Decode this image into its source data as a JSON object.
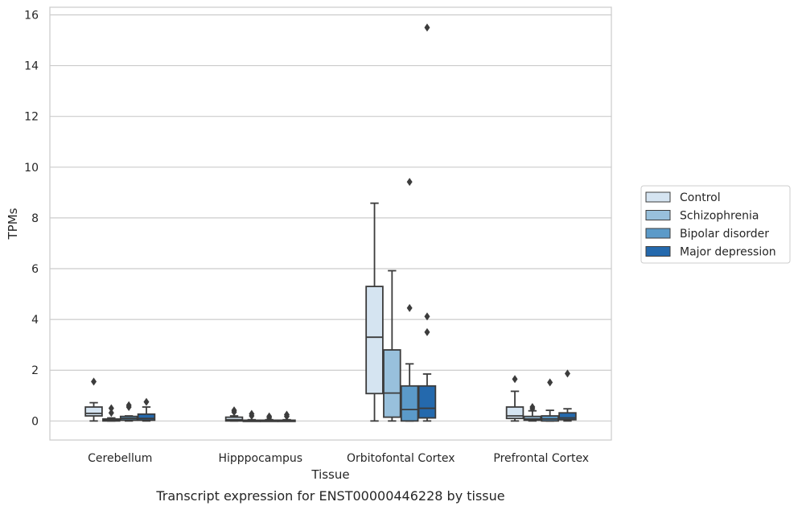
{
  "chart_data": {
    "type": "box",
    "title": "Transcript expression for ENST00000446228 by tissue",
    "xlabel": "Tissue",
    "ylabel": "TPMs",
    "ylim": [
      -0.75,
      16.3
    ],
    "yticks": [
      0,
      2,
      4,
      6,
      8,
      10,
      12,
      14,
      16
    ],
    "grid": true,
    "legend_position": "right",
    "categories": [
      "Cerebellum",
      "Hipppocampus",
      "Orbitofontal Cortex",
      "Prefrontal Cortex"
    ],
    "series": [
      {
        "name": "Control",
        "color": "#d5e4f1",
        "boxes": [
          {
            "whislo": 0.0,
            "q1": 0.2,
            "med": 0.3,
            "q3": 0.55,
            "whishi": 0.72,
            "fliers": [
              1.55
            ]
          },
          {
            "whislo": 0.0,
            "q1": 0.0,
            "med": 0.05,
            "q3": 0.15,
            "whishi": 0.2,
            "fliers": [
              0.35,
              0.42
            ]
          },
          {
            "whislo": 0.0,
            "q1": 1.08,
            "med": 3.3,
            "q3": 5.3,
            "whishi": 8.58,
            "fliers": []
          },
          {
            "whislo": 0.0,
            "q1": 0.1,
            "med": 0.2,
            "q3": 0.55,
            "whishi": 1.17,
            "fliers": [
              1.65
            ]
          }
        ]
      },
      {
        "name": "Schizophrenia",
        "color": "#98c0dc",
        "boxes": [
          {
            "whislo": 0.0,
            "q1": 0.0,
            "med": 0.03,
            "q3": 0.08,
            "whishi": 0.12,
            "fliers": [
              0.32,
              0.5
            ]
          },
          {
            "whislo": 0.0,
            "q1": 0.0,
            "med": 0.01,
            "q3": 0.03,
            "whishi": 0.05,
            "fliers": [
              0.2,
              0.28
            ]
          },
          {
            "whislo": 0.0,
            "q1": 0.15,
            "med": 1.1,
            "q3": 2.8,
            "whishi": 5.92,
            "fliers": []
          },
          {
            "whislo": 0.0,
            "q1": 0.03,
            "med": 0.08,
            "q3": 0.18,
            "whishi": 0.4,
            "fliers": [
              0.48,
              0.55
            ]
          }
        ]
      },
      {
        "name": "Bipolar disorder",
        "color": "#5b9ac9",
        "boxes": [
          {
            "whislo": 0.0,
            "q1": 0.03,
            "med": 0.1,
            "q3": 0.18,
            "whishi": 0.2,
            "fliers": [
              0.55,
              0.62
            ]
          },
          {
            "whislo": 0.0,
            "q1": 0.0,
            "med": 0.01,
            "q3": 0.03,
            "whishi": 0.05,
            "fliers": [
              0.12,
              0.18
            ]
          },
          {
            "whislo": 0.0,
            "q1": 0.0,
            "med": 0.45,
            "q3": 1.38,
            "whishi": 2.25,
            "fliers": [
              4.45,
              9.42
            ]
          },
          {
            "whislo": 0.0,
            "q1": 0.0,
            "med": 0.08,
            "q3": 0.2,
            "whishi": 0.42,
            "fliers": [
              1.52
            ]
          }
        ]
      },
      {
        "name": "Major depression",
        "color": "#2469ad",
        "boxes": [
          {
            "whislo": 0.0,
            "q1": 0.03,
            "med": 0.1,
            "q3": 0.27,
            "whishi": 0.55,
            "fliers": [
              0.75
            ]
          },
          {
            "whislo": 0.0,
            "q1": 0.0,
            "med": 0.01,
            "q3": 0.03,
            "whishi": 0.05,
            "fliers": [
              0.18,
              0.25
            ]
          },
          {
            "whislo": 0.0,
            "q1": 0.12,
            "med": 0.5,
            "q3": 1.38,
            "whishi": 1.85,
            "fliers": [
              3.5,
              4.12,
              15.5
            ]
          },
          {
            "whislo": 0.0,
            "q1": 0.05,
            "med": 0.12,
            "q3": 0.32,
            "whishi": 0.48,
            "fliers": [
              1.87
            ]
          }
        ]
      }
    ]
  }
}
